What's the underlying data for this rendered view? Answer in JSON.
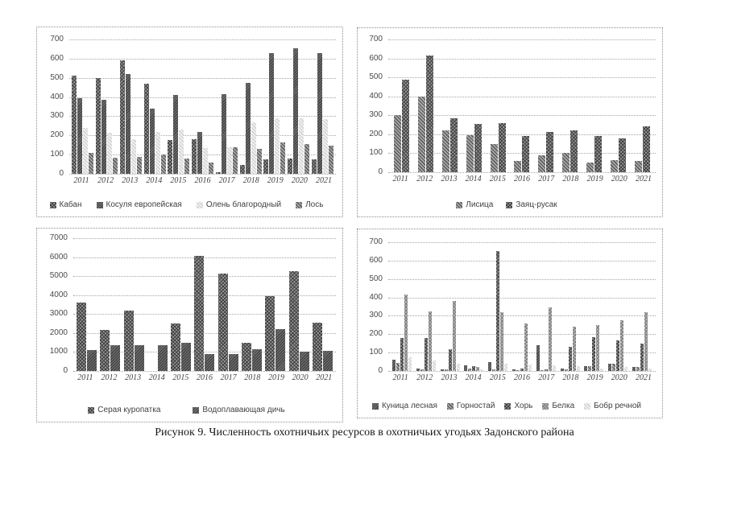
{
  "page": {
    "caption": "Рисунок 9. Численность охотничьих ресурсов в охотничьих угодьях Задонского района"
  },
  "colors": {
    "grid": "#a6a6a6",
    "panel_border": "#8f8f8f",
    "text": "#3f3f3f",
    "bar_dark": "#6e6e6e",
    "bar_mid": "#9a9a9a",
    "bar_light": "#d6d6d6"
  },
  "chart_data": [
    {
      "type": "bar",
      "panel": "top-left",
      "title": "",
      "xlabel": "",
      "ylabel": "",
      "ylim": [
        0,
        700
      ],
      "ytick_step": 100,
      "grid": true,
      "legend_position": "bottom",
      "categories": [
        "2011",
        "2012",
        "2013",
        "2014",
        "2015",
        "2016",
        "2017",
        "2018",
        "2019",
        "2020",
        "2021"
      ],
      "series": [
        {
          "name": "Кабан",
          "pattern": "p2",
          "values": [
            510,
            500,
            590,
            470,
            175,
            180,
            10,
            45,
            75,
            80,
            75
          ]
        },
        {
          "name": "Косуля европейская",
          "pattern": "p4",
          "values": [
            395,
            385,
            520,
            340,
            410,
            220,
            415,
            475,
            630,
            655,
            630
          ]
        },
        {
          "name": "Олень благородный",
          "pattern": "p3",
          "values": [
            240,
            215,
            180,
            220,
            230,
            135,
            140,
            270,
            290,
            290,
            285
          ]
        },
        {
          "name": "Лось",
          "pattern": "p1",
          "values": [
            110,
            85,
            90,
            100,
            80,
            60,
            140,
            130,
            165,
            155,
            145
          ]
        }
      ]
    },
    {
      "type": "bar",
      "panel": "top-right",
      "title": "",
      "xlabel": "",
      "ylabel": "",
      "ylim": [
        0,
        700
      ],
      "ytick_step": 100,
      "grid": true,
      "legend_position": "bottom",
      "categories": [
        "2011",
        "2012",
        "2013",
        "2014",
        "2015",
        "2016",
        "2017",
        "2018",
        "2019",
        "2020",
        "2021"
      ],
      "series": [
        {
          "name": "Лисица",
          "pattern": "p1",
          "values": [
            300,
            400,
            220,
            195,
            150,
            60,
            90,
            100,
            50,
            65,
            60
          ]
        },
        {
          "name": "Заяц-русак",
          "pattern": "p2",
          "values": [
            490,
            615,
            285,
            255,
            260,
            190,
            210,
            220,
            190,
            180,
            240
          ]
        }
      ]
    },
    {
      "type": "bar",
      "panel": "bottom-left",
      "title": "",
      "xlabel": "",
      "ylabel": "",
      "ylim": [
        0,
        7000
      ],
      "ytick_step": 1000,
      "grid": true,
      "legend_position": "bottom",
      "categories": [
        "2011",
        "2012",
        "2013",
        "2014",
        "2015",
        "2016",
        "2017",
        "2018",
        "2019",
        "2020",
        "2021"
      ],
      "series": [
        {
          "name": "Серая куропатка",
          "pattern": "p2",
          "values": [
            3600,
            2150,
            3200,
            0,
            2500,
            6050,
            5150,
            1500,
            3950,
            5250,
            2550
          ]
        },
        {
          "name": "Водоплавающая дичь",
          "pattern": "p4",
          "values": [
            1100,
            1350,
            1350,
            1350,
            1500,
            900,
            900,
            1150,
            2200,
            1000,
            1050
          ]
        }
      ]
    },
    {
      "type": "bar",
      "panel": "bottom-right",
      "title": "",
      "xlabel": "",
      "ylabel": "",
      "ylim": [
        0,
        700
      ],
      "ytick_step": 100,
      "grid": true,
      "legend_position": "bottom",
      "categories": [
        "2011",
        "2012",
        "2013",
        "2014",
        "2015",
        "2016",
        "2017",
        "2018",
        "2019",
        "2020",
        "2021"
      ],
      "series": [
        {
          "name": "Куница лесная",
          "pattern": "p4",
          "values": [
            60,
            15,
            10,
            30,
            50,
            10,
            140,
            15,
            25,
            40,
            20
          ]
        },
        {
          "name": "Горностай",
          "pattern": "p1",
          "values": [
            45,
            10,
            10,
            15,
            10,
            5,
            5,
            10,
            25,
            40,
            20
          ]
        },
        {
          "name": "Хорь",
          "pattern": "p2",
          "values": [
            180,
            180,
            120,
            25,
            650,
            15,
            10,
            130,
            185,
            165,
            150
          ]
        },
        {
          "name": "Белка",
          "pattern": "p6",
          "values": [
            415,
            325,
            380,
            20,
            320,
            260,
            345,
            240,
            250,
            275,
            320
          ]
        },
        {
          "name": "Бобр речной",
          "pattern": "p3",
          "values": [
            75,
            55,
            40,
            10,
            40,
            35,
            30,
            25,
            15,
            20,
            15
          ]
        }
      ]
    }
  ]
}
